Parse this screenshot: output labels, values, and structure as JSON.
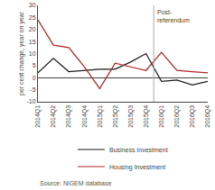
{
  "chart_data": {
    "type": "line",
    "y_label": "per cent change, year on year",
    "categories": [
      "2014Q1",
      "2014Q2",
      "2014Q3",
      "2014Q4",
      "2015Q1",
      "2015Q2",
      "2015Q3",
      "2015Q4",
      "2016Q1",
      "2016Q2",
      "2016Q3",
      "2016Q4"
    ],
    "series": [
      {
        "name": "Business Investment",
        "color": "#1a1a1a",
        "values": [
          2.0,
          8.0,
          2.5,
          3.0,
          3.5,
          3.5,
          6.5,
          10.0,
          -1.5,
          -1.0,
          -3.0,
          -1.5
        ]
      },
      {
        "name": "Housing Investment",
        "color": "#b22222",
        "values": [
          24.0,
          13.5,
          12.5,
          4.5,
          -4.5,
          6.0,
          4.5,
          3.0,
          10.5,
          3.0,
          2.5,
          2.0
        ]
      }
    ],
    "annotations": [
      {
        "text": "Post-\nreferendum",
        "x": "2016Q1"
      },
      {
        "text": "Source: NiGEM database"
      }
    ],
    "ylim": [
      -10,
      30
    ],
    "yticks": [
      -10,
      -5,
      0,
      5,
      10,
      15,
      20,
      25,
      30
    ],
    "grid": false,
    "legend": "bottom"
  }
}
